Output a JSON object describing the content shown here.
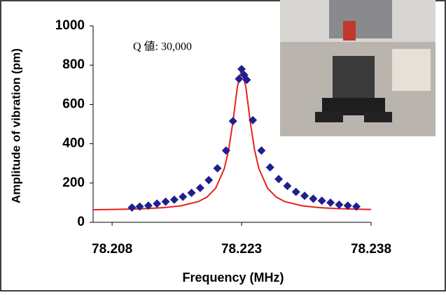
{
  "chart_data": {
    "type": "scatter",
    "ylabel": "Amplitude of vibration (pm)",
    "xlabel": "Frequency (MHz)",
    "annotation": "Q 値: 30,000",
    "xlim": [
      78.2058,
      78.238
    ],
    "xticks": [
      78.208,
      78.223,
      78.238
    ],
    "ylim": [
      0,
      1000
    ],
    "yticks": [
      0,
      200,
      400,
      600,
      800,
      1000
    ],
    "grid": false,
    "series": [
      {
        "color": "#1f1f8f",
        "marker": "diamond",
        "x": [
          78.2103,
          78.2112,
          78.2122,
          78.2132,
          78.2142,
          78.2152,
          78.2162,
          78.2172,
          78.2182,
          78.2192,
          78.2202,
          78.2212,
          78.222,
          78.2227,
          78.223,
          78.2233,
          78.2236,
          78.2243,
          78.2253,
          78.2263,
          78.2273,
          78.2283,
          78.2293,
          78.2303,
          78.2313,
          78.2323,
          78.2333,
          78.2343,
          78.2353,
          78.2363
        ],
        "values": [
          75,
          80,
          85,
          95,
          105,
          115,
          130,
          150,
          175,
          215,
          275,
          365,
          515,
          730,
          780,
          750,
          725,
          520,
          365,
          280,
          220,
          185,
          155,
          135,
          120,
          110,
          100,
          90,
          85,
          80
        ]
      },
      {
        "color": "#e8201a",
        "marker": "line",
        "x": [
          78.2058,
          78.208,
          78.21,
          78.212,
          78.214,
          78.216,
          78.218,
          78.219,
          78.22,
          78.221,
          78.2215,
          78.222,
          78.2225,
          78.223,
          78.2235,
          78.224,
          78.2245,
          78.225,
          78.226,
          78.227,
          78.228,
          78.23,
          78.232,
          78.234,
          78.236,
          78.238
        ],
        "values": [
          64,
          65.4,
          67.1,
          70,
          74.7,
          84,
          105.6,
          128.8,
          173.7,
          273.6,
          368.9,
          512,
          687,
          780,
          687,
          512,
          368.9,
          273.6,
          173.7,
          128.8,
          105.6,
          84,
          74.7,
          70,
          67.1,
          65.4
        ]
      }
    ]
  }
}
